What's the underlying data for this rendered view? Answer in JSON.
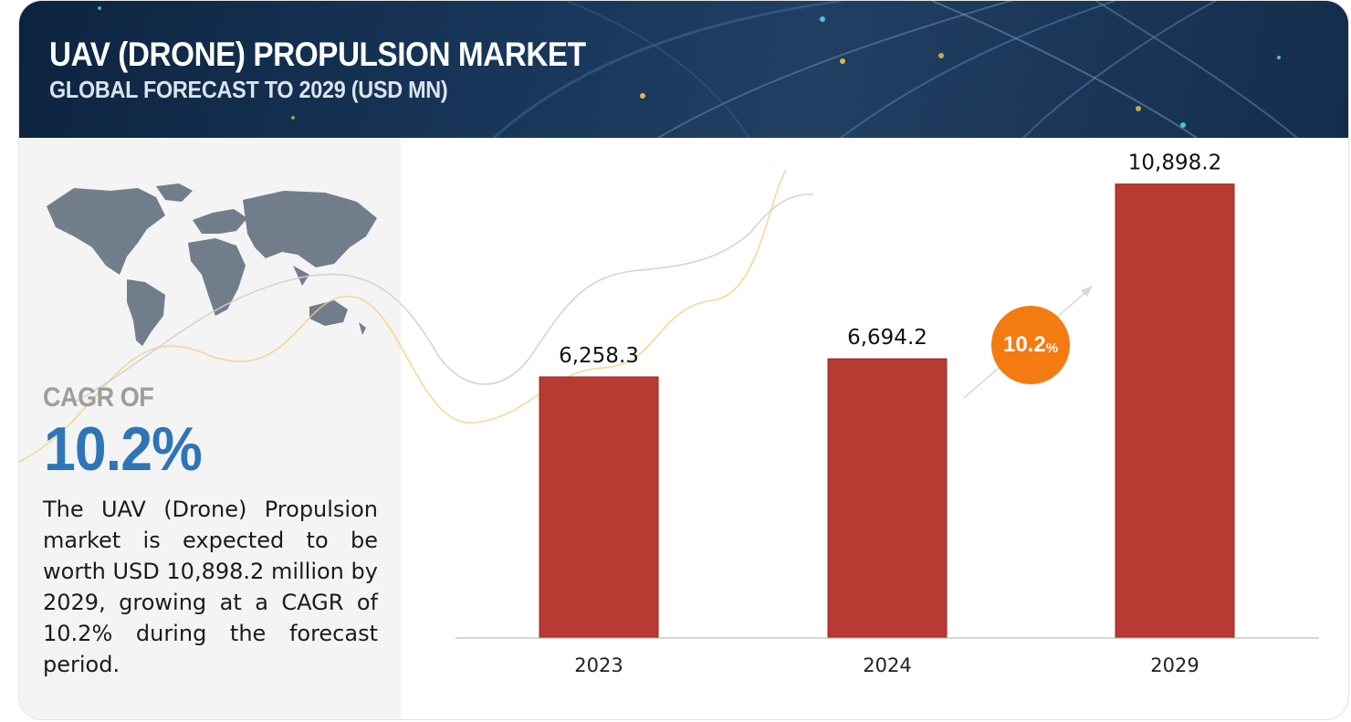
{
  "header": {
    "title": "UAV (DRONE) PROPULSION MARKET",
    "subtitle": "GLOBAL FORECAST TO 2029 (USD MN)"
  },
  "side": {
    "cagr_label": "CAGR OF",
    "cagr_value": "10.2%",
    "description": "The UAV (Drone) Propulsion market is expected to be worth USD 10,898.2 million by 2029, growing at a CAGR of 10.2% during the forecast period."
  },
  "badge": {
    "value": "10.2",
    "unit": "%"
  },
  "colors": {
    "bar": "#b83a33",
    "cagr": "#2e75b8",
    "badge": "#f47a12",
    "header": "#173558"
  },
  "icons": [
    "world-map-icon",
    "growth-arrow-icon"
  ],
  "chart_data": {
    "type": "bar",
    "categories": [
      "2023",
      "2024",
      "2029"
    ],
    "values": [
      6258.3,
      6694.2,
      10898.2
    ],
    "value_labels": [
      "6,258.3",
      "6,694.2",
      "10,898.2"
    ],
    "title": "UAV (DRONE) PROPULSION MARKET",
    "subtitle": "GLOBAL FORECAST TO 2029 (USD MN)",
    "xlabel": "",
    "ylabel": "",
    "ylim": [
      0,
      11900
    ],
    "grid": false,
    "annotation": "10.2%"
  }
}
